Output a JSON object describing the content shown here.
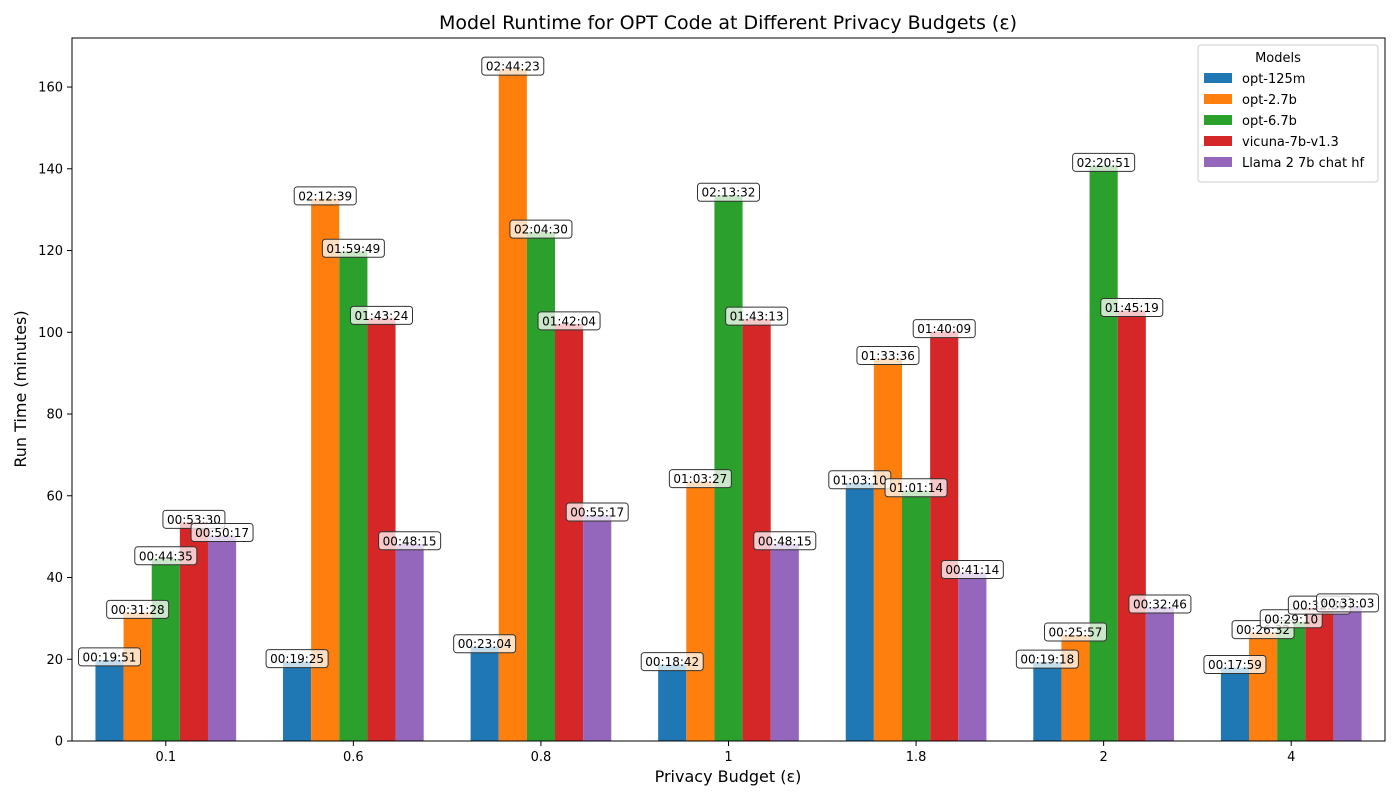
{
  "chart_data": {
    "type": "bar",
    "title": "Model Runtime for OPT Code at Different Privacy Budgets (ε)",
    "xlabel": "Privacy Budget (ε)",
    "ylabel": "Run Time (minutes)",
    "ylim": [
      0,
      172
    ],
    "yticks": [
      0,
      20,
      40,
      60,
      80,
      100,
      120,
      140,
      160
    ],
    "grid": false,
    "legend": {
      "title": "Models",
      "placement": "top-right"
    },
    "categories": [
      "0.1",
      "0.6",
      "0.8",
      "1",
      "1.8",
      "2",
      "4"
    ],
    "series": [
      {
        "name": "opt-125m",
        "color": "#1f77b4",
        "values": [
          19.85,
          19.42,
          23.07,
          18.7,
          63.17,
          19.3,
          17.98
        ],
        "labels": [
          "00:19:51",
          "00:19:25",
          "00:23:04",
          "00:18:42",
          "01:03:10",
          "00:19:18",
          "00:17:59"
        ]
      },
      {
        "name": "opt-2.7b",
        "color": "#ff7f0e",
        "values": [
          31.47,
          132.65,
          164.38,
          63.45,
          93.6,
          25.95,
          26.53
        ],
        "labels": [
          "00:31:28",
          "02:12:39",
          "02:44:23",
          "01:03:27",
          "01:33:36",
          "00:25:57",
          "00:26:32"
        ]
      },
      {
        "name": "opt-6.7b",
        "color": "#2ca02c",
        "values": [
          44.58,
          119.82,
          124.5,
          133.53,
          61.23,
          140.85,
          29.17
        ],
        "labels": [
          "00:44:35",
          "01:59:49",
          "02:04:30",
          "02:13:32",
          "01:01:14",
          "02:20:51",
          "00:29:10"
        ]
      },
      {
        "name": "vicuna-7b-v1.3",
        "color": "#d62728",
        "values": [
          53.5,
          103.4,
          102.07,
          103.22,
          100.15,
          105.32,
          32.5
        ],
        "labels": [
          "00:53:30",
          "01:43:24",
          "01:42:04",
          "01:43:13",
          "01:40:09",
          "01:45:19",
          "00:32:30"
        ]
      },
      {
        "name": "Llama 2 7b chat hf",
        "color": "#9467bd",
        "values": [
          50.28,
          48.25,
          55.28,
          48.25,
          41.23,
          32.77,
          33.05
        ],
        "labels": [
          "00:50:17",
          "00:48:15",
          "00:55:17",
          "00:48:15",
          "00:41:14",
          "00:32:46",
          "00:33:03"
        ]
      }
    ]
  }
}
